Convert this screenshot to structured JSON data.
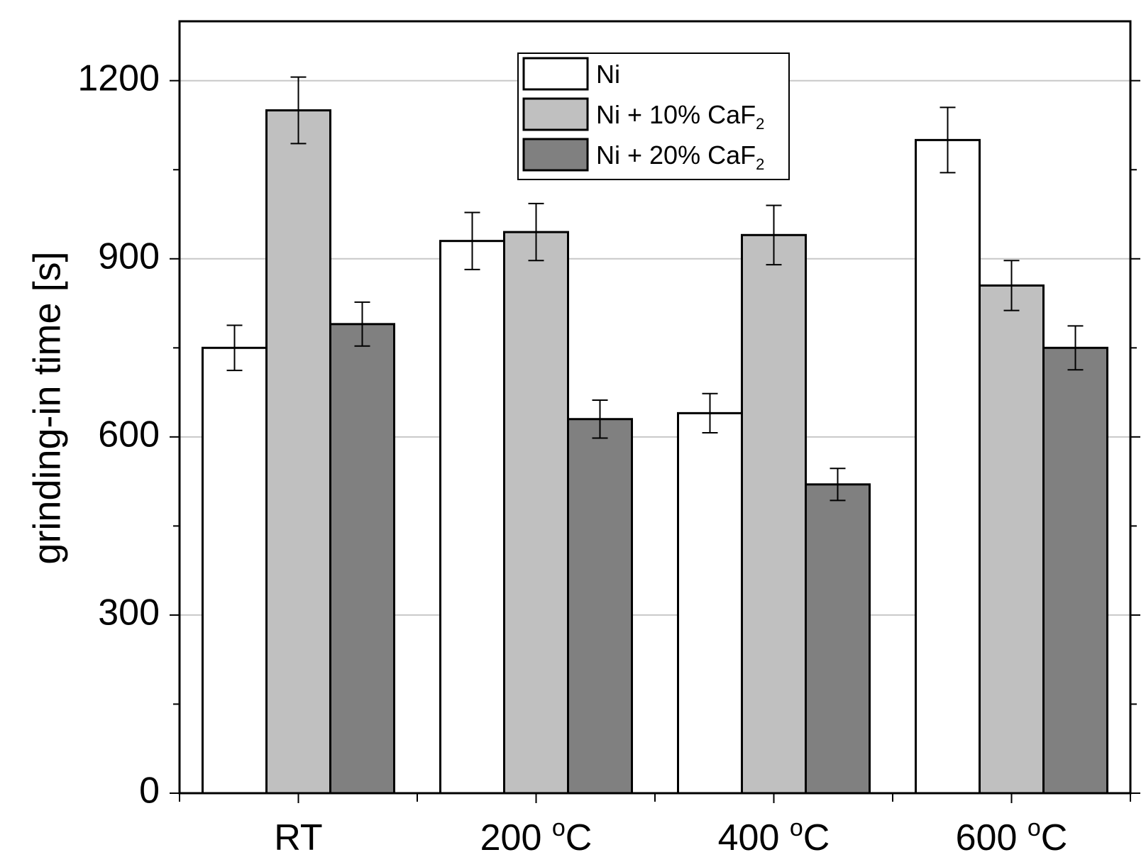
{
  "chart_data": {
    "type": "bar",
    "ylabel": "grinding-in time [s]",
    "xlabel": "",
    "ylim": [
      0,
      1300
    ],
    "yticks": [
      0,
      300,
      600,
      900,
      1200
    ],
    "ytick_labels": [
      "0",
      "300",
      "600",
      "900",
      "1200"
    ],
    "minor_ytick_step": 150,
    "grid": true,
    "legend_position": "top-center",
    "categories": [
      {
        "base": "RT",
        "superscript": "",
        "unit": ""
      },
      {
        "base": "200 ",
        "superscript": "o",
        "unit": "C"
      },
      {
        "base": "400 ",
        "superscript": "o",
        "unit": "C"
      },
      {
        "base": "600 ",
        "superscript": "o",
        "unit": "C"
      }
    ],
    "series": [
      {
        "name": "Ni",
        "label_main": "Ni",
        "label_sub": "",
        "color": "#ffffff",
        "values": [
          750,
          930,
          640,
          1100
        ],
        "errors": [
          38,
          48,
          33,
          55
        ]
      },
      {
        "name": "Ni + 10% CaF2",
        "label_main": "Ni + 10% CaF",
        "label_sub": "2",
        "color": "#c0c0c0",
        "values": [
          1150,
          945,
          940,
          855
        ],
        "errors": [
          56,
          48,
          50,
          42
        ]
      },
      {
        "name": "Ni + 20% CaF2",
        "label_main": "Ni + 20% CaF",
        "label_sub": "2",
        "color": "#808080",
        "values": [
          790,
          630,
          520,
          750
        ],
        "errors": [
          37,
          32,
          27,
          37
        ]
      }
    ]
  }
}
